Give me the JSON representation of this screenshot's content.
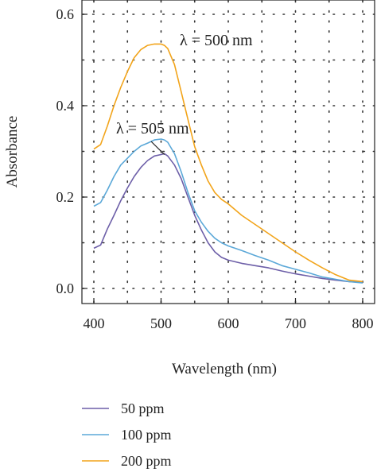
{
  "chart_data": {
    "type": "line",
    "title": "",
    "xlabel": "Wavelength (nm)",
    "ylabel": "Absorbance",
    "xlim": [
      400,
      800
    ],
    "ylim": [
      0.0,
      0.6
    ],
    "xticks": [
      400,
      500,
      600,
      700,
      800
    ],
    "yticks": [
      0.0,
      0.2,
      0.4,
      0.6
    ],
    "xtick_labels": [
      "400",
      "500",
      "600",
      "700",
      "800"
    ],
    "ytick_labels": [
      "0.0",
      "0.2",
      "0.4",
      "0.6"
    ],
    "grid": true,
    "legend_position": "bottom-left",
    "x": [
      400,
      410,
      420,
      430,
      440,
      450,
      460,
      470,
      480,
      490,
      500,
      505,
      510,
      520,
      530,
      540,
      550,
      560,
      570,
      580,
      590,
      600,
      620,
      640,
      660,
      680,
      700,
      720,
      740,
      760,
      780,
      800
    ],
    "series": [
      {
        "name": "50 ppm",
        "color": "#6d5fa8",
        "values": [
          0.088,
          0.095,
          0.13,
          0.16,
          0.192,
          0.22,
          0.245,
          0.265,
          0.28,
          0.29,
          0.293,
          0.295,
          0.29,
          0.27,
          0.24,
          0.2,
          0.16,
          0.128,
          0.1,
          0.08,
          0.068,
          0.062,
          0.055,
          0.05,
          0.045,
          0.038,
          0.032,
          0.027,
          0.022,
          0.018,
          0.015,
          0.014
        ]
      },
      {
        "name": "100 ppm",
        "color": "#5ba8d8",
        "values": [
          0.18,
          0.188,
          0.215,
          0.245,
          0.27,
          0.285,
          0.3,
          0.312,
          0.318,
          0.325,
          0.327,
          0.325,
          0.32,
          0.295,
          0.255,
          0.21,
          0.17,
          0.145,
          0.125,
          0.11,
          0.1,
          0.093,
          0.083,
          0.072,
          0.062,
          0.05,
          0.042,
          0.034,
          0.025,
          0.02,
          0.015,
          0.012
        ]
      },
      {
        "name": "200 ppm",
        "color": "#f2a41a",
        "values": [
          0.305,
          0.315,
          0.355,
          0.4,
          0.44,
          0.475,
          0.505,
          0.523,
          0.532,
          0.535,
          0.535,
          0.532,
          0.525,
          0.49,
          0.43,
          0.37,
          0.31,
          0.27,
          0.235,
          0.21,
          0.195,
          0.185,
          0.16,
          0.14,
          0.12,
          0.1,
          0.08,
          0.062,
          0.045,
          0.03,
          0.018,
          0.015
        ]
      }
    ],
    "annotations": [
      {
        "text": "λ = 500 nm",
        "x": 500,
        "y": 0.535
      },
      {
        "text": "λ = 505 nm",
        "x": 505,
        "y": 0.293
      }
    ]
  }
}
